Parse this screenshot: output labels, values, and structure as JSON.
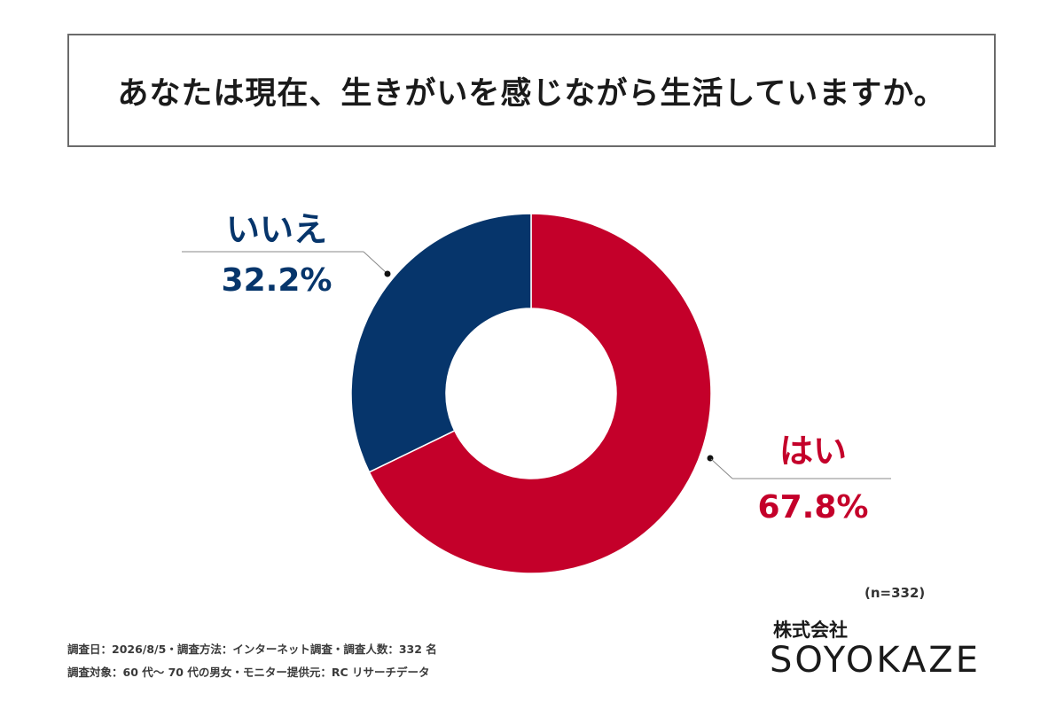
{
  "title": "あなたは現在、生きがいを感じながら生活していますか。",
  "chart_data": {
    "type": "pie",
    "donut": true,
    "slices": [
      {
        "label": "はい",
        "value": 67.8,
        "value_label": "67.8%",
        "color": "#c4002a"
      },
      {
        "label": "いいえ",
        "value": 32.2,
        "value_label": "32.2%",
        "color": "#06356b"
      }
    ],
    "start": "12 o'clock",
    "direction": "clockwise"
  },
  "sample_size": "(n=332)",
  "footnotes": [
    "調査日：2026/8/5・調査方法：インターネット調査・調査人数：332 名",
    "調査対象：60 代〜 70 代の男女・モニター提供元：RC リサーチデータ"
  ],
  "logo": {
    "company_jp": "株式会社",
    "company_en": "SOYOKAZE"
  }
}
